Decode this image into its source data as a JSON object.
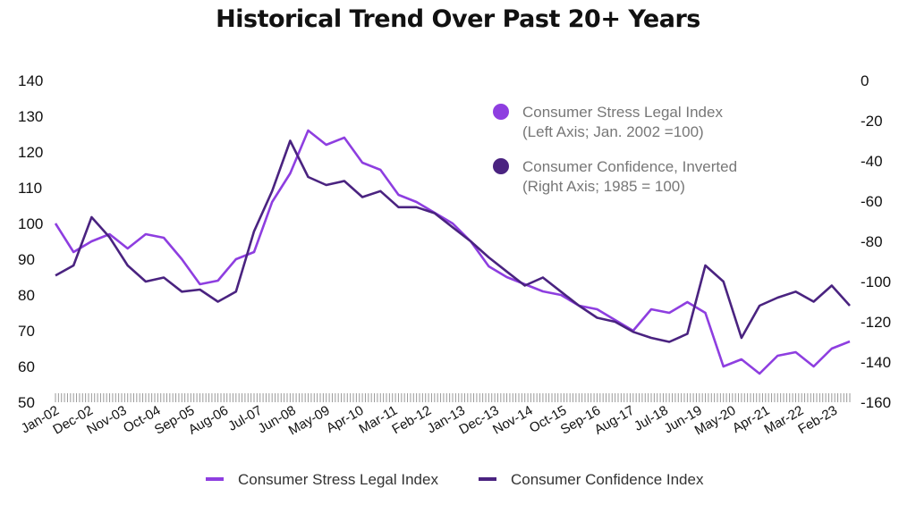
{
  "chart_data": {
    "type": "line",
    "title": "Historical Trend Over Past 20+ Years",
    "x_tick_labels": [
      "Jan-02",
      "Dec-02",
      "Nov-03",
      "Oct-04",
      "Sep-05",
      "Aug-06",
      "Jul-07",
      "Jun-08",
      "May-09",
      "Apr-10",
      "Mar-11",
      "Feb-12",
      "Jan-13",
      "Dec-13",
      "Nov-14",
      "Oct-15",
      "Sep-16",
      "Aug-17",
      "Jul-18",
      "Jun-19",
      "May-20",
      "Apr-21",
      "Mar-22",
      "Feb-23"
    ],
    "y_left": {
      "min": 50,
      "max": 140,
      "ticks": [
        50,
        60,
        70,
        80,
        90,
        100,
        110,
        120,
        130,
        140
      ]
    },
    "y_right": {
      "min": -160,
      "max": 0,
      "ticks": [
        -160,
        -140,
        -120,
        -100,
        -80,
        -60,
        -40,
        -20,
        0
      ]
    },
    "inset_legend": [
      {
        "line1": "Consumer Stress Legal Index",
        "line2": "(Left Axis; Jan. 2002 =100)",
        "color": "#8e3ee0"
      },
      {
        "line1": "Consumer Confidence, Inverted",
        "line2": "(Right Axis; 1985 = 100)",
        "color": "#4a2380"
      }
    ],
    "series": [
      {
        "name": "Consumer Stress Legal Index",
        "axis": "left",
        "color": "#8e3ee0",
        "x": [
          2002.0,
          2002.5,
          2003.0,
          2003.5,
          2004.0,
          2004.5,
          2005.0,
          2005.5,
          2006.0,
          2006.5,
          2007.0,
          2007.5,
          2008.0,
          2008.5,
          2009.0,
          2009.5,
          2010.0,
          2010.5,
          2011.0,
          2011.5,
          2012.0,
          2012.5,
          2013.0,
          2013.5,
          2014.0,
          2014.5,
          2015.0,
          2015.5,
          2016.0,
          2016.5,
          2017.0,
          2017.5,
          2018.0,
          2018.5,
          2019.0,
          2019.5,
          2020.0,
          2020.5,
          2021.0,
          2021.5,
          2022.0,
          2022.5,
          2023.0,
          2023.5,
          2024.0
        ],
        "y": [
          100,
          92,
          95,
          97,
          93,
          97,
          96,
          90,
          83,
          84,
          90,
          92,
          106,
          114,
          126,
          122,
          124,
          117,
          115,
          108,
          106,
          103,
          100,
          95,
          88,
          85,
          83,
          81,
          80,
          77,
          76,
          73,
          70,
          76,
          75,
          78,
          75,
          60,
          62,
          58,
          63,
          64,
          60,
          65,
          67
        ]
      },
      {
        "name": "Consumer Confidence Index",
        "axis": "right",
        "color": "#4a2380",
        "x": [
          2002.0,
          2002.5,
          2003.0,
          2003.5,
          2004.0,
          2004.5,
          2005.0,
          2005.5,
          2006.0,
          2006.5,
          2007.0,
          2007.5,
          2008.0,
          2008.5,
          2009.0,
          2009.5,
          2010.0,
          2010.5,
          2011.0,
          2011.5,
          2012.0,
          2012.5,
          2013.0,
          2013.5,
          2014.0,
          2014.5,
          2015.0,
          2015.5,
          2016.0,
          2016.5,
          2017.0,
          2017.5,
          2018.0,
          2018.5,
          2019.0,
          2019.5,
          2020.0,
          2020.5,
          2021.0,
          2021.5,
          2022.0,
          2022.5,
          2023.0,
          2023.5,
          2024.0
        ],
        "y": [
          -97,
          -92,
          -68,
          -78,
          -92,
          -100,
          -98,
          -105,
          -104,
          -110,
          -105,
          -75,
          -55,
          -30,
          -48,
          -52,
          -50,
          -58,
          -55,
          -63,
          -63,
          -66,
          -73,
          -80,
          -88,
          -95,
          -102,
          -98,
          -105,
          -112,
          -118,
          -120,
          -125,
          -128,
          -130,
          -126,
          -92,
          -100,
          -128,
          -112,
          -108,
          -105,
          -110,
          -102,
          -112
        ]
      }
    ],
    "legend": [
      {
        "label": "Consumer Stress Legal Index",
        "color": "#8e3ee0"
      },
      {
        "label": "Consumer Confidence Index",
        "color": "#4a2380"
      }
    ]
  }
}
